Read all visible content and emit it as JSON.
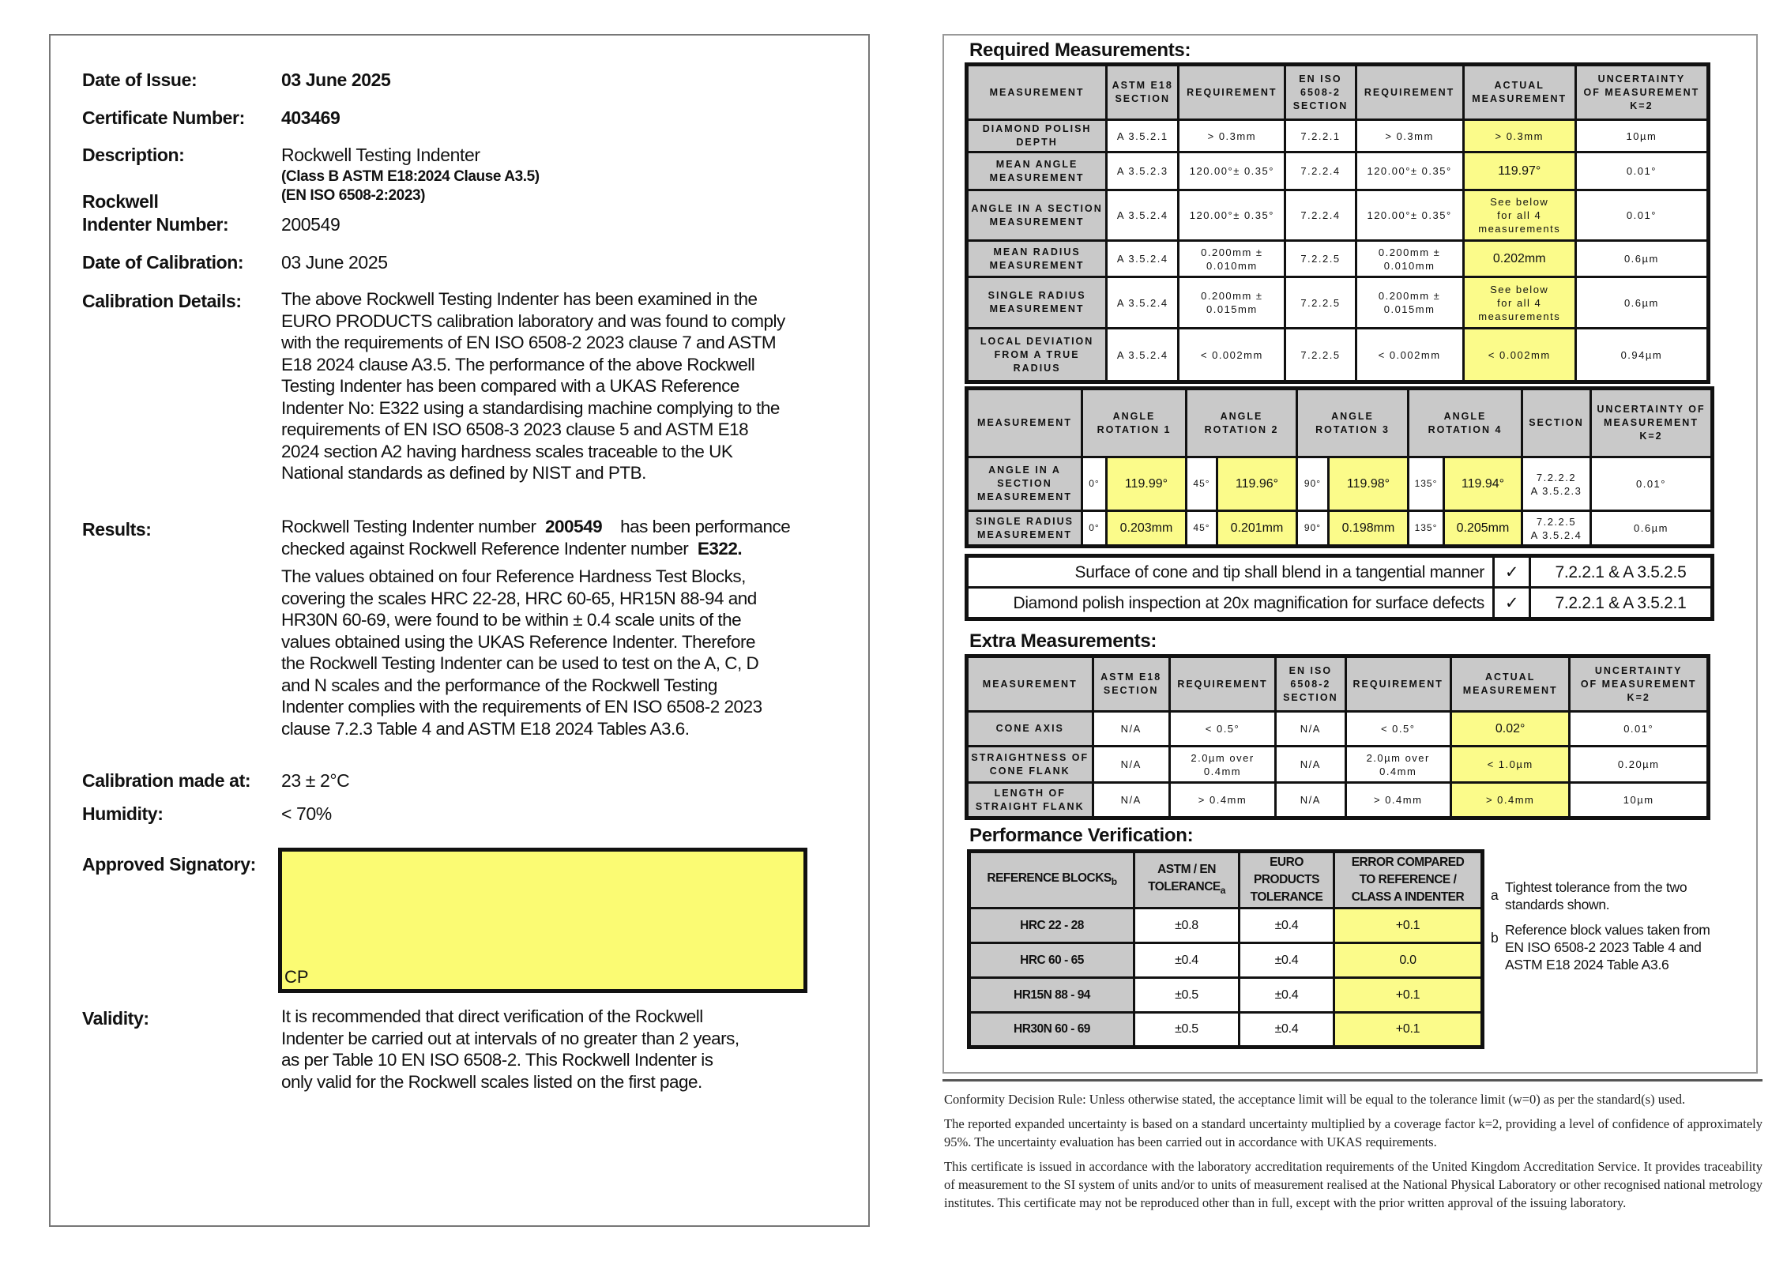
{
  "left": {
    "date_of_issue": {
      "label": "Date of Issue:",
      "value": "03 June 2025"
    },
    "certificate_number": {
      "label": "Certificate Number:",
      "value": "403469"
    },
    "description": {
      "label": "Description:",
      "value": "Rockwell Testing Indenter",
      "line2": "(Class B ASTM E18:2024 Clause A3.5)",
      "line3": "(EN ISO 6508-2:2023)"
    },
    "indenter_number": {
      "label_line1": "Rockwell",
      "label_line2": "Indenter Number:",
      "value": "200549"
    },
    "date_of_calibration": {
      "label": "Date of Calibration:",
      "value": "03 June 2025"
    },
    "calibration_details": {
      "label": "Calibration Details:",
      "lines": [
        "The above Rockwell Testing Indenter has been examined in the",
        "EURO PRODUCTS calibration laboratory and was found to comply",
        "with the requirements of EN ISO 6508-2 2023 clause 7 and ASTM",
        "E18 2024 clause A3.5. The performance of the above Rockwell",
        "Testing Indenter has been compared with a UKAS Reference",
        "Indenter No: E322 using a standardising machine complying to the",
        "requirements of EN ISO 6508-3 2023 clause 5 and ASTM E18",
        "2024 section A2 having hardness scales traceable to the UK",
        "National standards as defined by NIST and PTB."
      ]
    },
    "results": {
      "label": "Results:",
      "line1_a": "Rockwell Testing Indenter number",
      "line1_num": "200549",
      "line1_b": "has been performance",
      "line2_a": "checked against Rockwell Reference Indenter number",
      "line2_ref": "E322.",
      "lines": [
        "The values obtained on four Reference Hardness Test Blocks,",
        "covering the scales HRC 22-28, HRC 60-65, HR15N 88-94 and",
        "HR30N 60-69, were found to be within ± 0.4 scale units of the",
        "values obtained using the UKAS Reference Indenter. Therefore",
        "the Rockwell Testing Indenter can be used to test on the A, C, D",
        "and N scales and the performance of the Rockwell Testing",
        "Indenter complies with the requirements of EN ISO 6508-2 2023",
        "clause 7.2.3 Table 4 and ASTM E18 2024 Tables A3.6."
      ]
    },
    "calibration_made_at": {
      "label": "Calibration made at:",
      "value": "23 ± 2°C"
    },
    "humidity": {
      "label": "Humidity:",
      "value": "< 70%"
    },
    "approved_signatory": {
      "label": "Approved Signatory:",
      "initials": "CP",
      "box_color": "#fbfb73"
    },
    "validity": {
      "label": "Validity:",
      "lines": [
        "It is recommended that direct verification of the Rockwell",
        "Indenter be carried out at intervals of no greater than 2 years,",
        "as per Table 10 EN ISO 6508-2. This Rockwell Indenter is",
        "only valid for the Rockwell scales listed on the first page."
      ]
    }
  },
  "required": {
    "title": "Required Measurements:",
    "headers": [
      "MEASUREMENT",
      "ASTM E18\nSECTION",
      "REQUIREMENT",
      "EN ISO\n6508-2\nSECTION",
      "REQUIREMENT",
      "ACTUAL\nMEASUREMENT",
      "UNCERTAINTY\nOF MEASUREMENT\nK=2"
    ],
    "rows": [
      [
        "DIAMOND POLISH\nDEPTH",
        "A 3.5.2.1",
        "> 0.3mm",
        "7.2.2.1",
        "> 0.3mm",
        "> 0.3mm",
        "10µm"
      ],
      [
        "MEAN ANGLE\nMEASUREMENT",
        "A 3.5.2.3",
        "120.00°± 0.35°",
        "7.2.2.4",
        "120.00°± 0.35°",
        "119.97°",
        "0.01°"
      ],
      [
        "ANGLE IN A SECTION\nMEASUREMENT",
        "A 3.5.2.4",
        "120.00°± 0.35°",
        "7.2.2.4",
        "120.00°± 0.35°",
        "See below\nfor all 4\nmeasurements",
        "0.01°"
      ],
      [
        "MEAN RADIUS\nMEASUREMENT",
        "A 3.5.2.4",
        "0.200mm ±\n0.010mm",
        "7.2.2.5",
        "0.200mm ±\n0.010mm",
        "0.202mm",
        "0.6µm"
      ],
      [
        "SINGLE RADIUS\nMEASUREMENT",
        "A 3.5.2.4",
        "0.200mm ±\n0.015mm",
        "7.2.2.5",
        "0.200mm ±\n0.015mm",
        "See below\nfor all 4\nmeasurements",
        "0.6µm"
      ],
      [
        "LOCAL DEVIATION\nFROM A TRUE\nRADIUS",
        "A 3.5.2.4",
        "< 0.002mm",
        "7.2.2.5",
        "< 0.002mm",
        "< 0.002mm",
        "0.94µm"
      ]
    ]
  },
  "rotations": {
    "headers": [
      "MEASUREMENT",
      "ANGLE\nROTATION 1",
      "ANGLE\nROTATION 2",
      "ANGLE\nROTATION 3",
      "ANGLE\nROTATION 4",
      "SECTION",
      "UNCERTAINTY OF\nMEASUREMENT\nK=2"
    ],
    "rows": [
      {
        "label": "ANGLE IN A\nSECTION\nMEASUREMENT",
        "angles": [
          "0°",
          "45°",
          "90°",
          "135°"
        ],
        "values": [
          "119.99°",
          "119.96°",
          "119.98°",
          "119.94°"
        ],
        "section": "7.2.2.2\nA 3.5.2.3",
        "uncertainty": "0.01°"
      },
      {
        "label": "SINGLE RADIUS\nMEASUREMENT",
        "angles": [
          "0°",
          "45°",
          "90°",
          "135°"
        ],
        "values": [
          "0.203mm",
          "0.201mm",
          "0.198mm",
          "0.205mm"
        ],
        "section": "7.2.2.5\nA 3.5.2.4",
        "uncertainty": "0.6µm"
      }
    ]
  },
  "checks": [
    {
      "text": "Surface of cone and tip shall blend in a tangential manner",
      "mark": "✓",
      "ref": "7.2.2.1 & A 3.5.2.5"
    },
    {
      "text": "Diamond polish inspection at 20x magnification for surface defects",
      "mark": "✓",
      "ref": "7.2.2.1 & A 3.5.2.1"
    }
  ],
  "extra": {
    "title": "Extra Measurements:",
    "headers": [
      "MEASUREMENT",
      "ASTM E18\nSECTION",
      "REQUIREMENT",
      "EN ISO\n6508-2\nSECTION",
      "REQUIREMENT",
      "ACTUAL\nMEASUREMENT",
      "UNCERTAINTY\nOF MEASUREMENT\nK=2"
    ],
    "rows": [
      [
        "CONE AXIS",
        "N/A",
        "< 0.5°",
        "N/A",
        "< 0.5°",
        "0.02°",
        "0.01°"
      ],
      [
        "STRAIGHTNESS OF\nCONE FLANK",
        "N/A",
        "2.0µm over\n0.4mm",
        "N/A",
        "2.0µm over\n0.4mm",
        "< 1.0µm",
        "0.20µm"
      ],
      [
        "LENGTH OF\nSTRAIGHT FLANK",
        "N/A",
        "> 0.4mm",
        "N/A",
        "> 0.4mm",
        "> 0.4mm",
        "10µm"
      ]
    ]
  },
  "performance": {
    "title": "Performance Verification:",
    "headers": [
      {
        "text": "REFERENCE BLOCKS",
        "sub": "b"
      },
      {
        "text": "ASTM / EN\nTOLERANCE",
        "sub": "a"
      },
      {
        "text": "EURO\nPRODUCTS\nTOLERANCE",
        "sub": ""
      },
      {
        "text": "ERROR COMPARED\nTO REFERENCE /\nCLASS A INDENTER",
        "sub": ""
      }
    ],
    "rows": [
      [
        "HRC 22 - 28",
        "±0.8",
        "±0.4",
        "+0.1"
      ],
      [
        "HRC 60 - 65",
        "±0.4",
        "±0.4",
        "0.0"
      ],
      [
        "HR15N 88 - 94",
        "±0.5",
        "±0.4",
        "+0.1"
      ],
      [
        "HR30N 60 - 69",
        "±0.5",
        "±0.4",
        "+0.1"
      ]
    ],
    "notes": [
      {
        "key": "a",
        "text": "Tightest tolerance from the two standards shown."
      },
      {
        "key": "b",
        "text": "Reference block values taken from EN ISO 6508-2 2023 Table 4 and ASTM E18 2024 Table A3.6"
      }
    ]
  },
  "footer": [
    "Conformity Decision Rule: Unless otherwise stated, the acceptance limit will be equal to the tolerance limit (w=0) as per the standard(s) used.",
    "The reported expanded uncertainty is based on a standard uncertainty multiplied by a coverage factor k=2, providing a level of confidence of approximately 95%. The uncertainty evaluation has been carried out in accordance with UKAS requirements.",
    "This certificate is issued in accordance with the laboratory accreditation requirements of the United Kingdom Accreditation Service. It provides traceability of measurement to the SI system of units and/or to units of measurement realised at the National Physical Laboratory or other recognised national metrology institutes. This certificate may not be reproduced other than in full, except with the prior written approval of the issuing laboratory."
  ],
  "colors": {
    "highlight": "#fbfb8a",
    "header_gray": "#c9c9c9",
    "border": "#111111"
  }
}
